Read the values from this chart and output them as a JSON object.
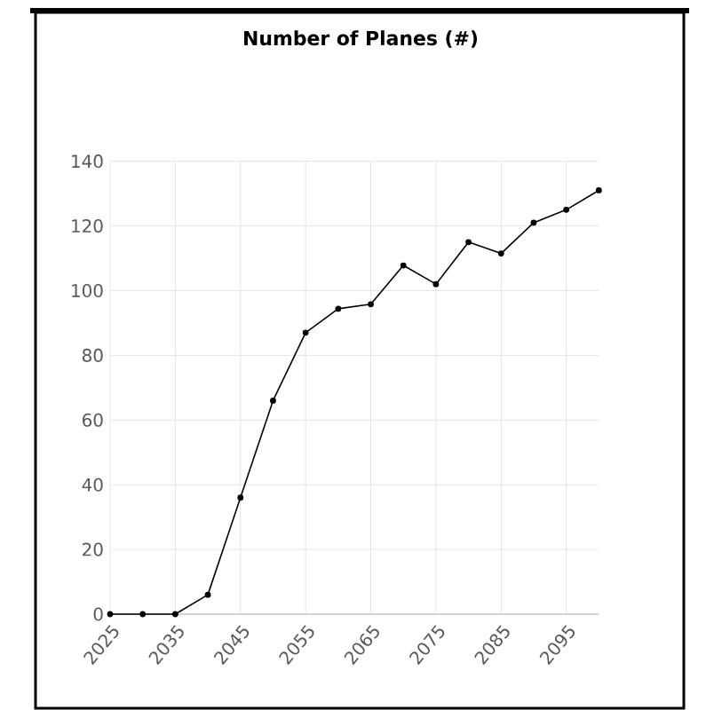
{
  "chart_data": {
    "type": "line",
    "title": "Number of Planes (#)",
    "x": [
      2025,
      2030,
      2035,
      2040,
      2045,
      2050,
      2055,
      2060,
      2065,
      2070,
      2075,
      2080,
      2085,
      2090,
      2095,
      2100
    ],
    "series": [
      {
        "color": "#000000",
        "values": [
          0,
          0,
          0,
          6,
          36,
          66,
          87,
          94.4,
          95.8,
          107.8,
          102,
          115,
          111.5,
          121,
          125,
          131
        ]
      }
    ],
    "xlim": [
      2025,
      2100
    ],
    "xticks": [
      2025,
      2035,
      2045,
      2055,
      2065,
      2075,
      2085,
      2095
    ],
    "ylim": [
      0,
      140
    ],
    "yticks": [
      0,
      20,
      40,
      60,
      80,
      100,
      120,
      140
    ],
    "grid": true,
    "marker": "circle",
    "line_style": "solid"
  }
}
